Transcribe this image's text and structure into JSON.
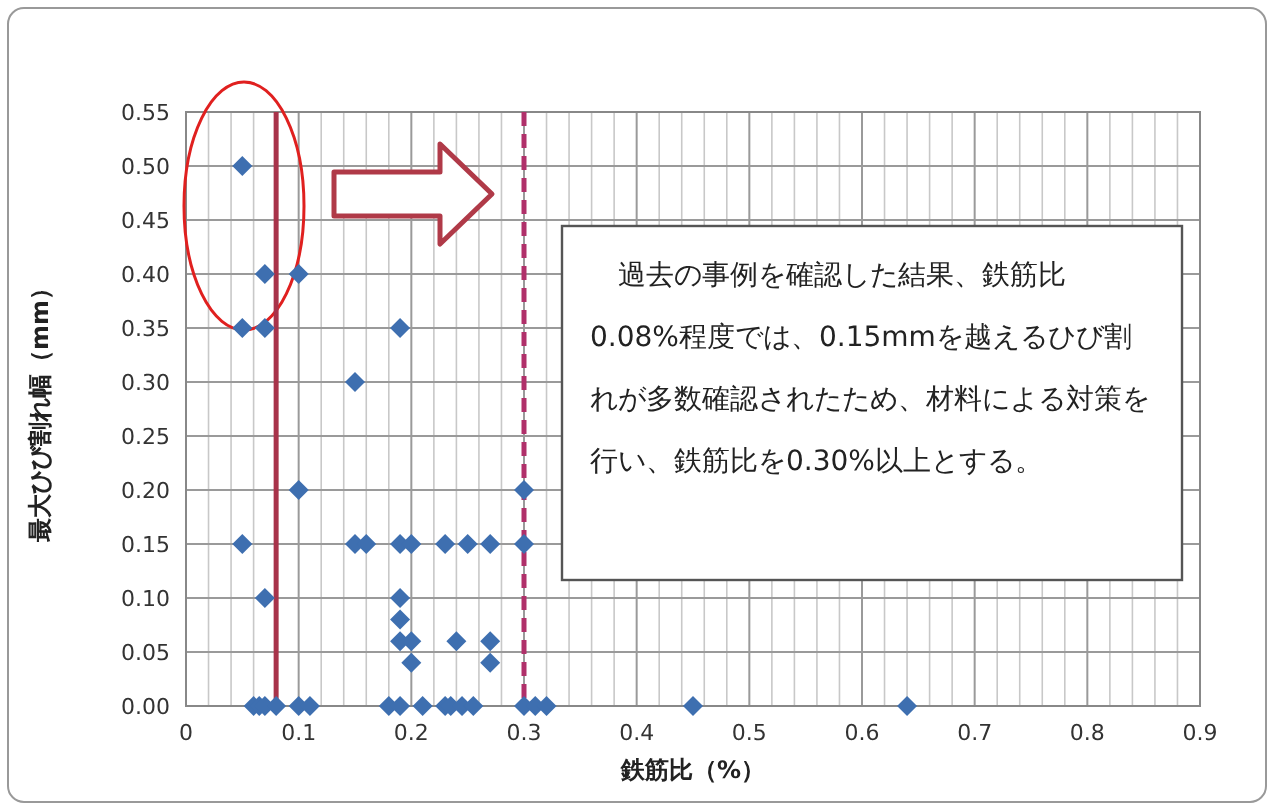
{
  "chart_data": {
    "type": "scatter",
    "xlabel": "鉄筋比（%）",
    "ylabel": "最大ひび割れ幅（mm）",
    "marker": "diamond",
    "grid": true,
    "xlim": [
      0,
      0.9
    ],
    "ylim": [
      0,
      0.55
    ],
    "xticks": [
      0,
      0.1,
      0.2,
      0.3,
      0.4,
      0.5,
      0.6,
      0.7,
      0.8,
      0.9
    ],
    "yticks": [
      {
        "value": 0,
        "label": "0.00"
      },
      {
        "value": 0.05,
        "label": "0.05"
      },
      {
        "value": 0.1,
        "label": "0.10"
      },
      {
        "value": 0.15,
        "label": "0.15"
      },
      {
        "value": 0.2,
        "label": "0.20"
      },
      {
        "value": 0.25,
        "label": "0.25"
      },
      {
        "value": 0.3,
        "label": "0.30"
      },
      {
        "value": 0.35,
        "label": "0.35"
      },
      {
        "value": 0.4,
        "label": "0.40"
      },
      {
        "value": 0.45,
        "label": "0.45"
      },
      {
        "value": 0.5,
        "label": "0.50"
      },
      {
        "value": 0.55,
        "label": "0.55"
      }
    ],
    "series": [
      {
        "color": "#3e6fb0",
        "x": [
          0.05,
          0.07,
          0.1,
          0.05,
          0.07,
          0.19,
          0.15,
          0.1,
          0.3,
          0.05,
          0.15,
          0.16,
          0.19,
          0.2,
          0.23,
          0.25,
          0.27,
          0.3,
          0.07,
          0.19,
          0.19,
          0.19,
          0.2,
          0.24,
          0.27,
          0.2,
          0.27,
          0.06,
          0.065,
          0.07,
          0.08,
          0.1,
          0.11,
          0.18,
          0.19,
          0.21,
          0.23,
          0.235,
          0.245,
          0.255,
          0.3,
          0.31,
          0.32,
          0.45,
          0.64
        ],
        "values": [
          0.5,
          0.4,
          0.4,
          0.35,
          0.35,
          0.35,
          0.3,
          0.2,
          0.2,
          0.15,
          0.15,
          0.15,
          0.15,
          0.15,
          0.15,
          0.15,
          0.15,
          0.15,
          0.1,
          0.1,
          0.08,
          0.06,
          0.06,
          0.06,
          0.06,
          0.04,
          0.04,
          0,
          0,
          0,
          0,
          0,
          0,
          0,
          0,
          0,
          0,
          0,
          0,
          0,
          0,
          0,
          0,
          0,
          0
        ]
      }
    ],
    "ref_lines": [
      {
        "axis": "x",
        "value": 0.08,
        "color": "#a8334a",
        "line_style": "solid"
      },
      {
        "axis": "x",
        "value": 0.3,
        "color": "#b0306a",
        "line_style": "dashed"
      }
    ],
    "annotations": [
      "過去の事例を確認した結果、鉄筋比0.08%程度では、0.15mmを越えるひび割れが多数確認されたため、材料による対策を行い、鉄筋比を0.30%以上とする。"
    ]
  }
}
